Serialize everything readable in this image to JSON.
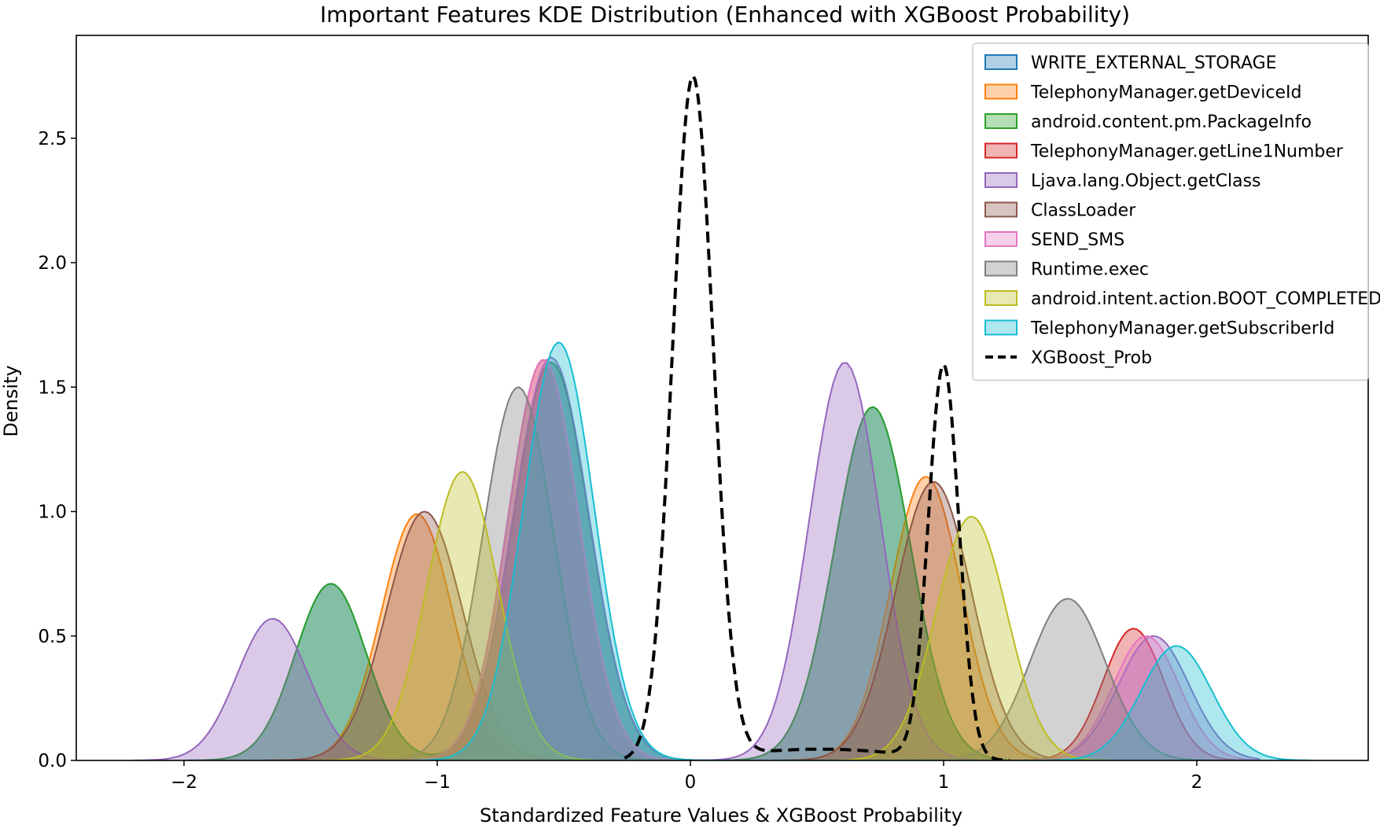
{
  "chart_data": {
    "type": "area",
    "title": "Important Features KDE Distribution (Enhanced with XGBoost Probability)",
    "xlabel": "Standardized Feature Values & XGBoost Probability",
    "ylabel": "Density",
    "xlim": [
      -2.3,
      2.6
    ],
    "ylim": [
      0,
      2.9
    ],
    "xticks": [
      -2,
      -1,
      0,
      1,
      2
    ],
    "xtick_labels": [
      "−2",
      "−1",
      "0",
      "1",
      "2"
    ],
    "yticks": [
      0,
      0.5,
      1,
      1.5,
      2,
      2.5
    ],
    "ytick_labels": [
      "0.0",
      "0.5",
      "1.0",
      "1.5",
      "2.0",
      "2.5"
    ],
    "grid": false,
    "legend_position": "top-right",
    "series": [
      {
        "name": "WRITE_EXTERNAL_STORAGE",
        "color": "#1f77b4",
        "fill": true,
        "domain": [
          -2.0,
          1.25
        ],
        "peaks": [
          {
            "x": -1.42,
            "h": 0.71,
            "s": 0.14
          },
          {
            "x": -0.55,
            "h": 1.6,
            "s": 0.15
          },
          {
            "x": 0.72,
            "h": 1.42,
            "s": 0.15
          }
        ]
      },
      {
        "name": "TelephonyManager.getDeviceId",
        "color": "#ff7f0e",
        "fill": true,
        "domain": [
          -1.65,
          1.5
        ],
        "peaks": [
          {
            "x": -1.08,
            "h": 0.99,
            "s": 0.14
          },
          {
            "x": 0.93,
            "h": 1.14,
            "s": 0.14
          }
        ]
      },
      {
        "name": "android.content.pm.PackageInfo",
        "color": "#2ca02c",
        "fill": true,
        "domain": [
          -2.0,
          1.25
        ],
        "peaks": [
          {
            "x": -1.42,
            "h": 0.71,
            "s": 0.14
          },
          {
            "x": -0.55,
            "h": 1.6,
            "s": 0.15
          },
          {
            "x": 0.72,
            "h": 1.42,
            "s": 0.15
          }
        ]
      },
      {
        "name": "TelephonyManager.getLine1Number",
        "color": "#d62728",
        "fill": true,
        "domain": [
          -1.3,
          2.2
        ],
        "peaks": [
          {
            "x": -0.58,
            "h": 1.61,
            "s": 0.14
          },
          {
            "x": 1.75,
            "h": 0.53,
            "s": 0.12
          }
        ]
      },
      {
        "name": "Ljava.lang.Object.getClass",
        "color": "#9467bd",
        "fill": true,
        "domain": [
          -2.2,
          2.25
        ],
        "peaks": [
          {
            "x": -1.65,
            "h": 0.57,
            "s": 0.14
          },
          {
            "x": -0.55,
            "h": 1.62,
            "s": 0.15
          },
          {
            "x": 0.61,
            "h": 1.6,
            "s": 0.14
          },
          {
            "x": 1.83,
            "h": 0.5,
            "s": 0.14
          }
        ]
      },
      {
        "name": "ClassLoader",
        "color": "#8c564b",
        "fill": true,
        "domain": [
          -1.7,
          1.55
        ],
        "peaks": [
          {
            "x": -1.05,
            "h": 1.0,
            "s": 0.15
          },
          {
            "x": 0.96,
            "h": 1.12,
            "s": 0.15
          }
        ]
      },
      {
        "name": "SEND_SMS",
        "color": "#e377c2",
        "fill": true,
        "domain": [
          -1.3,
          2.25
        ],
        "peaks": [
          {
            "x": -0.58,
            "h": 1.61,
            "s": 0.14
          },
          {
            "x": 1.8,
            "h": 0.5,
            "s": 0.13
          }
        ]
      },
      {
        "name": "Runtime.exec",
        "color": "#7f7f7f",
        "fill": true,
        "domain": [
          -1.3,
          2.1
        ],
        "peaks": [
          {
            "x": -0.68,
            "h": 1.5,
            "s": 0.14
          },
          {
            "x": 1.49,
            "h": 0.65,
            "s": 0.15
          }
        ]
      },
      {
        "name": "android.intent.action.BOOT_COMPLETED",
        "color": "#bcbd22",
        "fill": true,
        "domain": [
          -1.5,
          1.65
        ],
        "peaks": [
          {
            "x": -0.9,
            "h": 1.16,
            "s": 0.14
          },
          {
            "x": 1.11,
            "h": 0.98,
            "s": 0.14
          }
        ]
      },
      {
        "name": "TelephonyManager.getSubscriberId",
        "color": "#17becf",
        "fill": true,
        "domain": [
          -1.1,
          2.45
        ],
        "peaks": [
          {
            "x": -0.52,
            "h": 1.68,
            "s": 0.14
          },
          {
            "x": 1.92,
            "h": 0.46,
            "s": 0.14
          }
        ]
      },
      {
        "name": "XGBoost_Prob",
        "color": "#000000",
        "fill": false,
        "dashed": true,
        "domain": [
          -0.26,
          1.26
        ],
        "peaks": [
          {
            "x": 0.01,
            "h": 2.74,
            "s": 0.08
          },
          {
            "x": 1.0,
            "h": 1.58,
            "s": 0.06
          }
        ],
        "baseline": [
          {
            "x": 0.35,
            "h": 0.03,
            "s": 0.22
          },
          {
            "x": 0.68,
            "h": 0.03,
            "s": 0.22
          }
        ]
      }
    ]
  }
}
